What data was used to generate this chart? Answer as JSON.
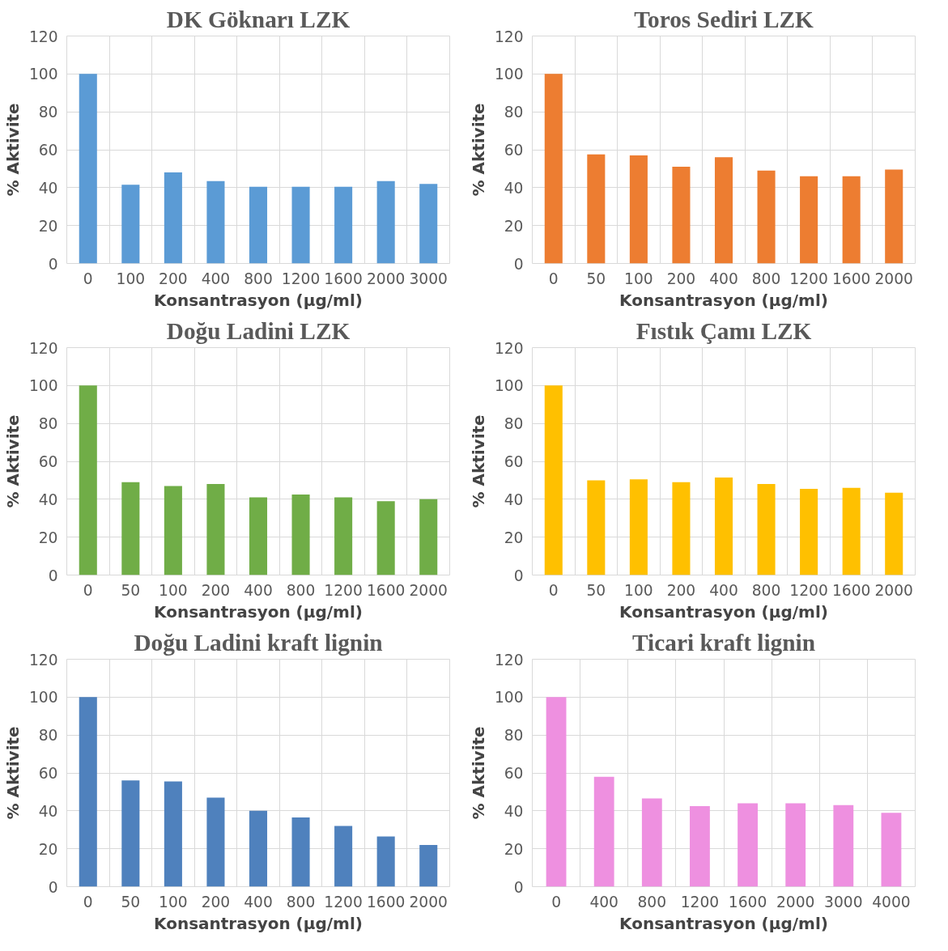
{
  "chart_data": [
    {
      "type": "bar",
      "title": "DK Göknarı LZK",
      "xlabel": "Konsantrasyon (µg/ml)",
      "ylabel": "% Aktivite",
      "categories": [
        "0",
        "100",
        "200",
        "400",
        "800",
        "1200",
        "1600",
        "2000",
        "3000"
      ],
      "values": [
        100,
        41.5,
        48,
        43.5,
        40.5,
        40.5,
        40.5,
        43.5,
        42
      ],
      "color": "#5b9bd5",
      "ylim": [
        0,
        120
      ],
      "yticks": [
        0,
        20,
        40,
        60,
        80,
        100,
        120
      ],
      "grid": true
    },
    {
      "type": "bar",
      "title": "Toros Sediri LZK",
      "xlabel": "Konsantrasyon (µg/ml)",
      "ylabel": "% Aktivite",
      "categories": [
        "0",
        "50",
        "100",
        "200",
        "400",
        "800",
        "1200",
        "1600",
        "2000"
      ],
      "values": [
        100,
        57.5,
        57,
        51,
        56,
        49,
        46,
        46,
        49.5
      ],
      "color": "#ed7d31",
      "ylim": [
        0,
        120
      ],
      "yticks": [
        0,
        20,
        40,
        60,
        80,
        100,
        120
      ],
      "grid": true
    },
    {
      "type": "bar",
      "title": "Doğu Ladini LZK",
      "xlabel": "Konsantrasyon (µg/ml)",
      "ylabel": "% Aktivite",
      "categories": [
        "0",
        "50",
        "100",
        "200",
        "400",
        "800",
        "1200",
        "1600",
        "2000"
      ],
      "values": [
        100,
        49,
        47,
        48,
        41,
        42.5,
        41,
        39,
        40
      ],
      "color": "#70ad47",
      "ylim": [
        0,
        120
      ],
      "yticks": [
        0,
        20,
        40,
        60,
        80,
        100,
        120
      ],
      "grid": true
    },
    {
      "type": "bar",
      "title": "Fıstık Çamı LZK",
      "xlabel": "Konsantrasyon (µg/ml)",
      "ylabel": "% Aktivite",
      "categories": [
        "0",
        "50",
        "100",
        "200",
        "400",
        "800",
        "1200",
        "1600",
        "2000"
      ],
      "values": [
        100,
        50,
        50.5,
        49,
        51.5,
        48,
        45.5,
        46,
        43.5
      ],
      "color": "#ffc000",
      "ylim": [
        0,
        120
      ],
      "yticks": [
        0,
        20,
        40,
        60,
        80,
        100,
        120
      ],
      "grid": true
    },
    {
      "type": "bar",
      "title": "Doğu Ladini kraft lignin",
      "xlabel": "Konsantrasyon (µg/ml)",
      "ylabel": "% Aktivite",
      "categories": [
        "0",
        "50",
        "100",
        "200",
        "400",
        "800",
        "1200",
        "1600",
        "2000"
      ],
      "values": [
        100,
        56,
        55.5,
        47,
        40,
        36.5,
        32,
        26.5,
        22
      ],
      "color": "#4f81bd",
      "ylim": [
        0,
        120
      ],
      "yticks": [
        0,
        20,
        40,
        60,
        80,
        100,
        120
      ],
      "grid": true
    },
    {
      "type": "bar",
      "title": "Ticari kraft lignin",
      "xlabel": "Konsantrasyon (µg/ml)",
      "ylabel": "% Aktivite",
      "categories": [
        "0",
        "400",
        "800",
        "1200",
        "1600",
        "2000",
        "3000",
        "4000"
      ],
      "values": [
        100,
        58,
        46.5,
        42.5,
        44,
        44,
        43,
        39
      ],
      "color": "#ee90e0",
      "ylim": [
        0,
        120
      ],
      "yticks": [
        0,
        20,
        40,
        60,
        80,
        100,
        120
      ],
      "grid": true
    }
  ]
}
